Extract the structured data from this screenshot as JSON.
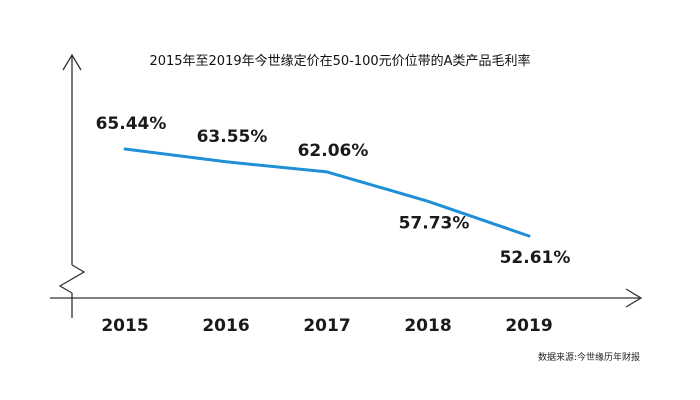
{
  "chart_data": {
    "type": "line",
    "title": "2015年至2019年今世缘定价在50-100元价位带的A类产品毛利率",
    "x": [
      "2015",
      "2016",
      "2017",
      "2018",
      "2019"
    ],
    "values": [
      65.44,
      63.55,
      62.06,
      57.73,
      52.61
    ],
    "data_labels": [
      "65.44%",
      "63.55%",
      "62.06%",
      "57.73%",
      "52.61%"
    ],
    "xlabel": "",
    "ylabel": "",
    "ylim": [
      0,
      70
    ],
    "y_axis_broken": true,
    "grid": false,
    "legend": "none",
    "source": "数据来源:今世缘历年财报",
    "colors": {
      "line": "#1f8fd6",
      "axis": "#333333",
      "text": "#1a1a1a"
    }
  }
}
